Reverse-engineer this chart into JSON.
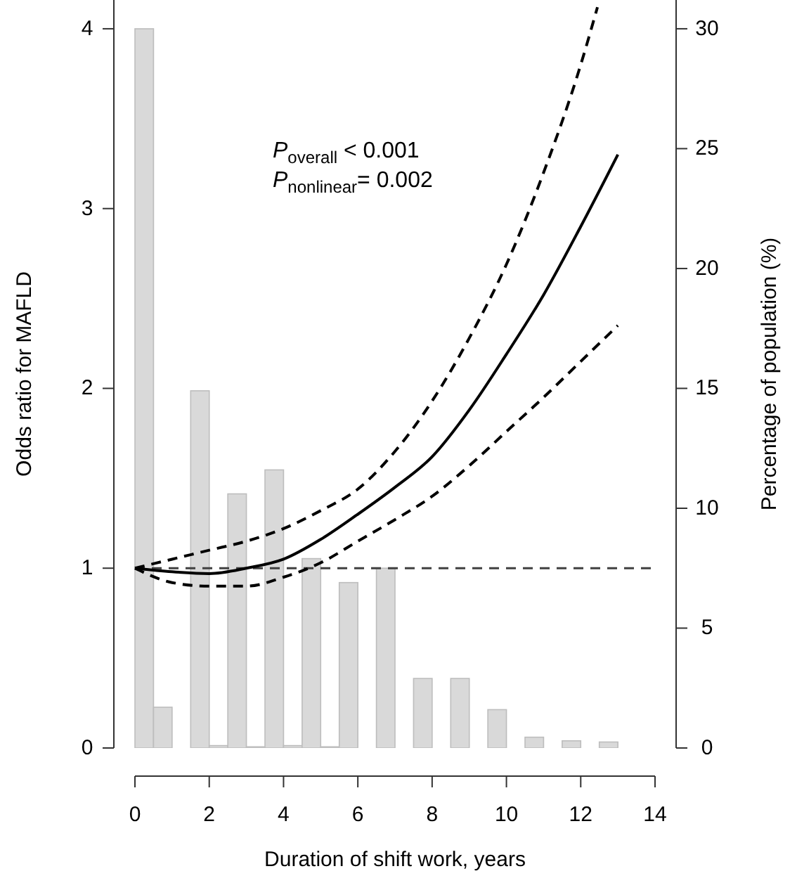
{
  "chart_data": {
    "type": "line",
    "xlabel": "Duration of shift work, years",
    "ylabel": "Odds ratio for MAFLD",
    "y2label": "Percentage of population (%)",
    "xlim": [
      0,
      14
    ],
    "xticks": [
      0,
      2,
      4,
      6,
      8,
      10,
      12,
      14
    ],
    "ylim": [
      0,
      4.16
    ],
    "yticks": [
      0,
      1,
      2,
      3,
      4
    ],
    "y2lim": [
      0,
      31.2
    ],
    "y2ticks": [
      0,
      5,
      10,
      15,
      20,
      25,
      30
    ],
    "annotations": [
      "P$_{overall}$ < 0.001",
      "P$_{nonlinear}$= 0.002"
    ],
    "ref_lines": [
      {
        "axis": "y",
        "value": 1,
        "color": "#404040",
        "line_style": "dashed"
      }
    ],
    "series": [
      {
        "type": "histogram",
        "axis": "y2",
        "color": "#d9d9d9",
        "bins": [
          0,
          0.5,
          1,
          1.5,
          2,
          2.5,
          3,
          3.5,
          4,
          4.5,
          5,
          5.5,
          6,
          6.5,
          7,
          7.5,
          8,
          8.5,
          9,
          9.5,
          10,
          10.5,
          11,
          11.5,
          12,
          12.5,
          13
        ],
        "values": [
          30,
          1.7,
          0,
          14.9,
          0.1,
          10.6,
          0.05,
          11.6,
          0.1,
          7.9,
          0.05,
          6.9,
          0,
          7.5,
          0,
          2.9,
          0,
          2.9,
          0,
          1.6,
          0,
          0.45,
          0,
          0.3,
          0,
          0.25
        ]
      },
      {
        "color": "#000000",
        "line_style": "solid",
        "x": [
          0,
          1,
          2,
          3,
          4,
          5,
          6,
          7,
          8,
          9,
          10,
          11,
          12,
          13
        ],
        "values": [
          1,
          0.98,
          0.97,
          1,
          1.05,
          1.16,
          1.3,
          1.45,
          1.62,
          1.88,
          2.19,
          2.52,
          2.9,
          3.3
        ]
      },
      {
        "color": "#000000",
        "line_style": "dashed",
        "x": [
          0,
          1,
          2,
          3,
          4,
          5,
          6,
          7,
          8,
          9,
          10,
          11,
          12,
          12.45
        ],
        "values": [
          1,
          1.05,
          1.1,
          1.15,
          1.22,
          1.32,
          1.44,
          1.65,
          1.93,
          2.28,
          2.69,
          3.2,
          3.8,
          4.12
        ]
      },
      {
        "color": "#000000",
        "line_style": "dashed",
        "x": [
          0,
          1,
          2,
          3,
          4,
          5,
          6,
          7,
          8,
          9,
          10,
          11,
          12,
          13
        ],
        "values": [
          1,
          0.92,
          0.9,
          0.9,
          0.95,
          1.03,
          1.15,
          1.27,
          1.4,
          1.57,
          1.76,
          1.95,
          2.15,
          2.35
        ]
      }
    ]
  }
}
